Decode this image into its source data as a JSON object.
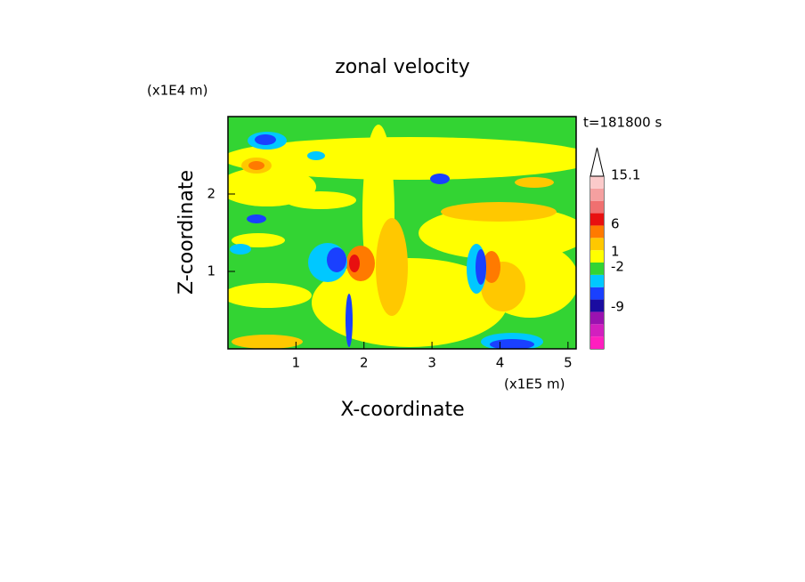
{
  "chart_data": {
    "type": "contour",
    "title": "zonal velocity",
    "x_label": "X-coordinate",
    "y_label": "Z-coordinate",
    "x_units": "(x1E5 m)",
    "y_units": "(x1E4 m)",
    "time_label": "t=181800 s",
    "xlim": [
      0,
      5.12
    ],
    "xticks": [
      1,
      2,
      3,
      4,
      5
    ],
    "ylim": [
      0,
      3
    ],
    "yticks": [
      1,
      2
    ],
    "colorbar_colors": [
      "#ff1fbf",
      "#d21fbf",
      "#9a12b0",
      "#1a0ca0",
      "#1a40ff",
      "#00c8ff",
      "#33d433",
      "#ffff00",
      "#ffc800",
      "#ff7a00",
      "#e81010",
      "#f07070",
      "#f5a0a0",
      "#fbcaca"
    ],
    "colorbar_ticks": [
      15.1,
      6,
      1,
      -2,
      -9
    ]
  }
}
